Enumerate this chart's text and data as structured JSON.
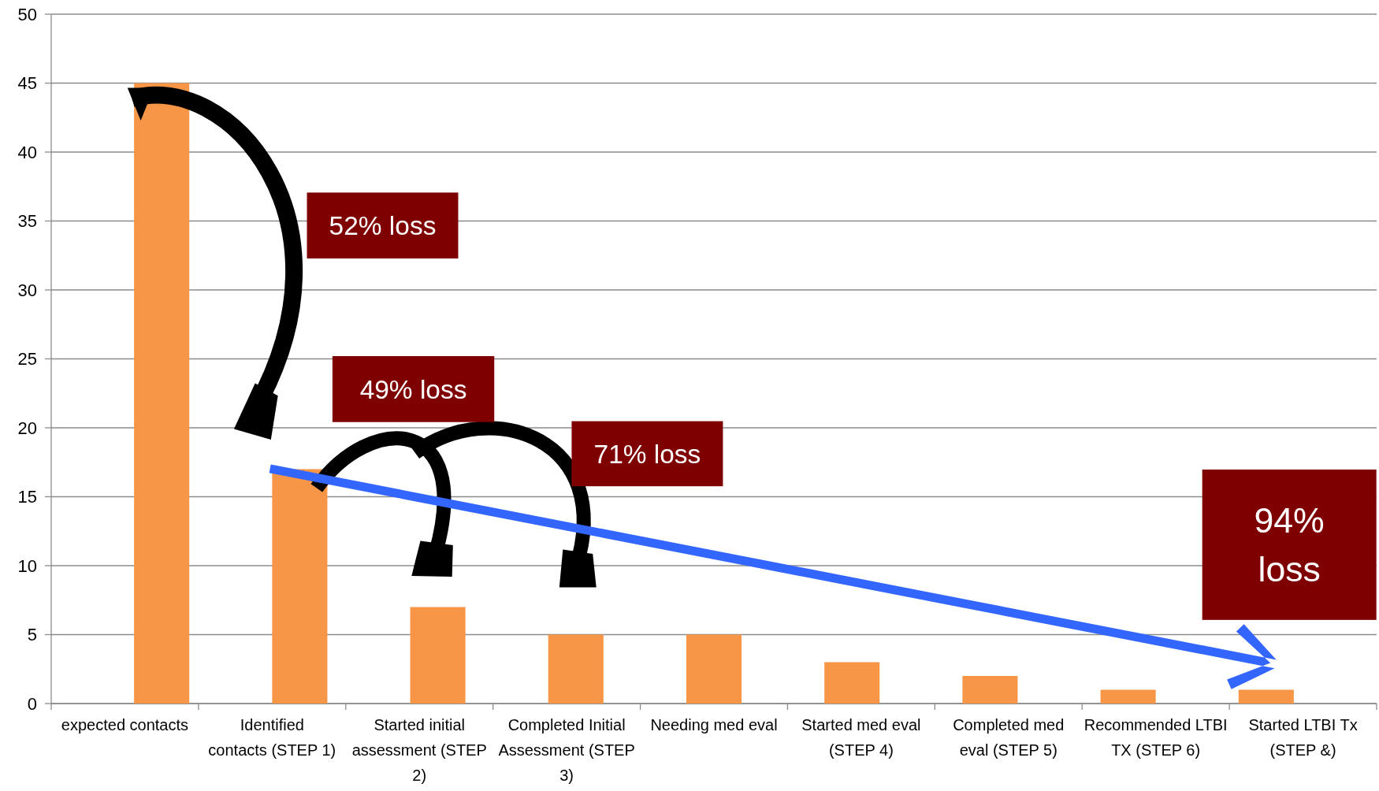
{
  "chart_data": {
    "type": "bar",
    "categories": [
      "expected contacts",
      "Identified contacts (STEP 1)",
      "Started initial assessment (STEP 2)",
      "Completed Initial Assessment (STEP 3)",
      "Needing med eval",
      "Started med eval (STEP 4)",
      "Completed med eval (STEP 5)",
      "Recommended LTBI TX (STEP 6)",
      "Started LTBI Tx (STEP &)"
    ],
    "values": [
      45,
      17,
      7,
      5,
      5,
      3,
      2,
      1,
      1
    ],
    "color": "#f79646",
    "ylim": [
      0,
      50
    ],
    "yticks": [
      0,
      5,
      10,
      15,
      20,
      25,
      30,
      35,
      40,
      45,
      50
    ],
    "grid": "y",
    "annotations": [
      "52% loss",
      "49% loss",
      "71% loss",
      "94% loss"
    ]
  }
}
